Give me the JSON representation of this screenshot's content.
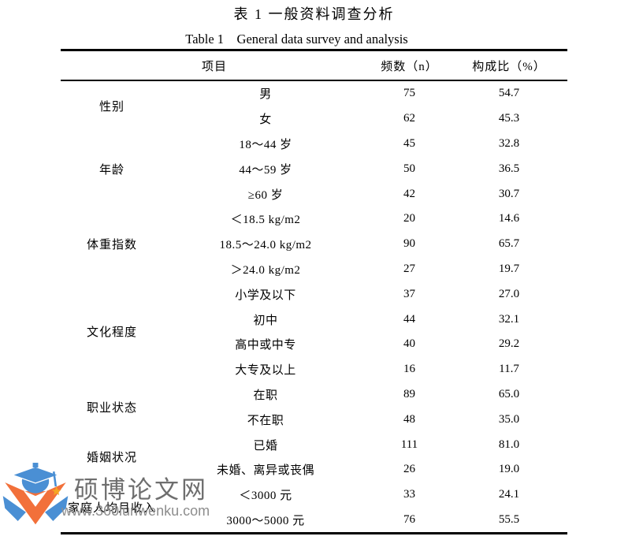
{
  "titles": {
    "cn": "表 1 一般资料调查分析",
    "en": "Table 1    General data survey and analysis"
  },
  "table": {
    "headers": {
      "item": "项目",
      "frequency": "频数（n）",
      "percent": "构成比（%）"
    },
    "groups": [
      {
        "category": "性别",
        "rows": [
          {
            "item": "男",
            "n": "75",
            "pct": "54.7"
          },
          {
            "item": "女",
            "n": "62",
            "pct": "45.3"
          }
        ]
      },
      {
        "category": "年龄",
        "rows": [
          {
            "item": "18～44 岁",
            "n": "45",
            "pct": "32.8"
          },
          {
            "item": "44～59 岁",
            "n": "50",
            "pct": "36.5"
          },
          {
            "item": "≥60 岁",
            "n": "42",
            "pct": "30.7"
          }
        ]
      },
      {
        "category": "体重指数",
        "rows": [
          {
            "item": "＜18.5 kg/m2",
            "n": "20",
            "pct": "14.6"
          },
          {
            "item": "18.5～24.0 kg/m2",
            "n": "90",
            "pct": "65.7"
          },
          {
            "item": "＞24.0 kg/m2",
            "n": "27",
            "pct": "19.7"
          }
        ]
      },
      {
        "category": "文化程度",
        "rows": [
          {
            "item": "小学及以下",
            "n": "37",
            "pct": "27.0"
          },
          {
            "item": "初中",
            "n": "44",
            "pct": "32.1"
          },
          {
            "item": "高中或中专",
            "n": "40",
            "pct": "29.2"
          },
          {
            "item": "大专及以上",
            "n": "16",
            "pct": "11.7"
          }
        ]
      },
      {
        "category": "职业状态",
        "rows": [
          {
            "item": "在职",
            "n": "89",
            "pct": "65.0"
          },
          {
            "item": "不在职",
            "n": "48",
            "pct": "35.0"
          }
        ]
      },
      {
        "category": "婚姻状况",
        "rows": [
          {
            "item": "已婚",
            "n": "111",
            "pct": "81.0"
          },
          {
            "item": "未婚、离异或丧偶",
            "n": "26",
            "pct": "19.0"
          }
        ]
      },
      {
        "category": "家庭人均月收入",
        "rows": [
          {
            "item": "＜3000 元",
            "n": "33",
            "pct": "24.1"
          },
          {
            "item": "3000～5000 元",
            "n": "76",
            "pct": "55.5"
          }
        ]
      }
    ]
  },
  "watermark": {
    "site_name": "硕博论文网",
    "site_url": "www.360lunwenku.com",
    "logo_blue": "#4a8fd4",
    "logo_orange": "#f2703a"
  }
}
